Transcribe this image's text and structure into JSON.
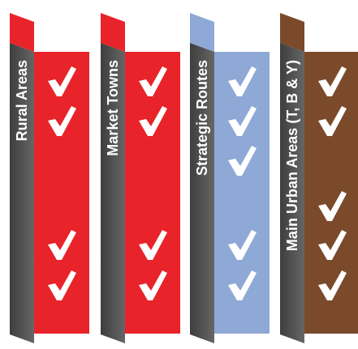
{
  "columns": [
    {
      "label": "Rural Areas",
      "color": "#e8232a",
      "tab_color": "#e8232a",
      "checks": [
        true,
        true,
        false,
        false,
        true,
        true
      ]
    },
    {
      "label": "Market Towns",
      "color": "#e8232a",
      "tab_color": "#e8232a",
      "checks": [
        true,
        true,
        false,
        false,
        true,
        true
      ]
    },
    {
      "label": "Strategic Routes",
      "color": "#8fa9d6",
      "tab_color": "#8fa9d6",
      "checks": [
        true,
        true,
        true,
        false,
        true,
        true
      ]
    },
    {
      "label": "Main Urban Areas (T, B & Y)",
      "color": "#7a4a2a",
      "tab_color": "#7a4a2a",
      "checks": [
        true,
        true,
        false,
        true,
        true,
        true
      ]
    }
  ],
  "spine_color": "#555555",
  "check_color": "#ffffff"
}
